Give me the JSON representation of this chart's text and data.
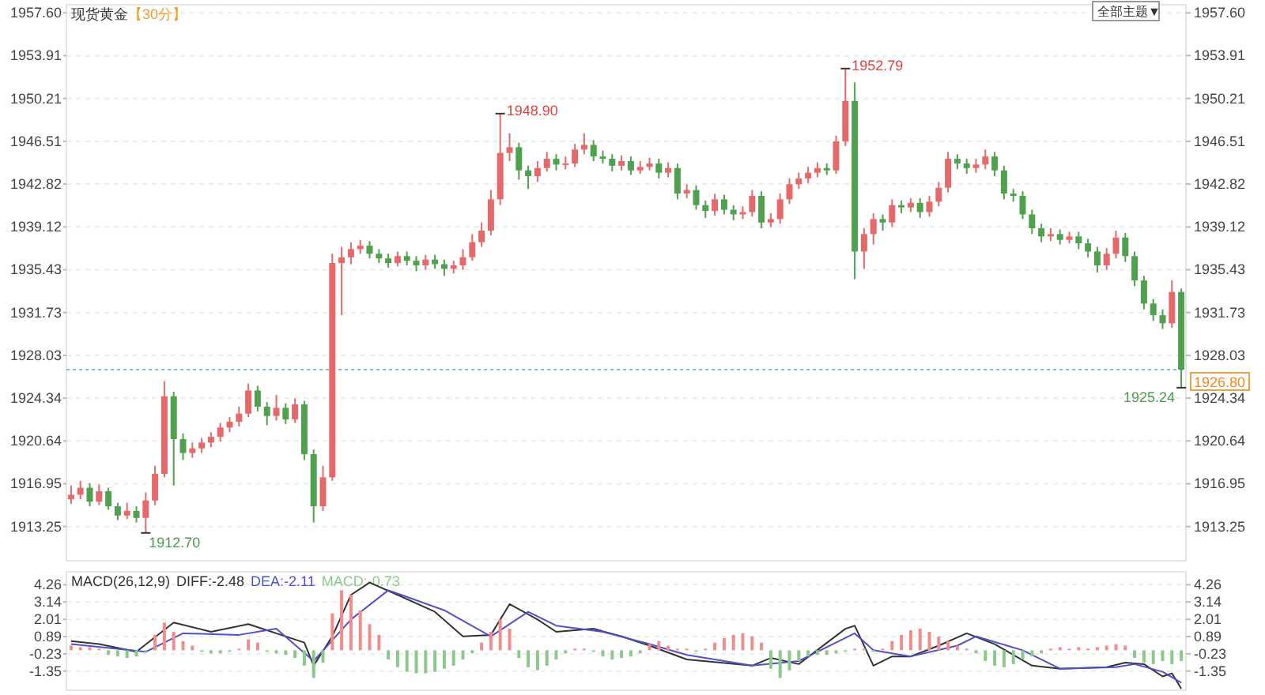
{
  "chart_data": [
    {
      "type": "candlestick",
      "title": "现货黄金",
      "subtitle": "【30分】",
      "tick_labels": "y",
      "grid": "y",
      "categories": [
        null,
        null,
        null,
        null,
        null,
        null,
        null,
        null,
        null,
        null,
        null,
        null,
        null,
        null,
        null,
        null,
        null,
        null,
        null,
        null,
        null,
        null,
        null,
        null,
        null,
        null,
        null,
        null,
        null,
        null,
        null,
        null,
        null,
        null,
        null,
        null,
        null,
        null,
        null,
        null,
        null,
        null,
        null,
        null,
        null,
        null,
        null,
        null,
        null,
        null,
        null,
        null,
        null,
        null,
        null,
        null,
        null,
        null,
        null,
        null,
        null,
        null,
        null,
        null,
        null,
        null,
        null,
        null,
        null,
        null,
        null,
        null,
        null,
        null,
        null,
        null,
        null,
        null,
        null,
        null,
        null,
        null,
        null,
        null,
        null,
        null,
        null,
        null,
        null,
        null,
        null,
        null,
        null,
        null,
        null,
        null,
        null,
        null,
        null,
        null,
        null,
        null,
        null,
        null,
        null,
        null,
        null,
        null,
        null,
        null,
        null,
        null,
        null,
        null,
        null,
        null,
        null,
        null,
        null,
        null
      ],
      "ohlc": [
        [
          1915.6,
          1916.8,
          1915.2,
          1916.0
        ],
        [
          1916.0,
          1917.2,
          1915.6,
          1916.6
        ],
        [
          1916.6,
          1917.0,
          1915.0,
          1915.4
        ],
        [
          1915.4,
          1916.9,
          1915.1,
          1916.3
        ],
        [
          1916.3,
          1916.6,
          1914.7,
          1915.0
        ],
        [
          1915.0,
          1915.3,
          1913.8,
          1914.2
        ],
        [
          1914.2,
          1915.3,
          1913.9,
          1914.6
        ],
        [
          1914.6,
          1915.0,
          1913.6,
          1914.0
        ],
        [
          1914.0,
          1916.2,
          1912.7,
          1915.5
        ],
        [
          1915.5,
          1918.5,
          1915.1,
          1917.8
        ],
        [
          1917.8,
          1925.8,
          1917.5,
          1924.5
        ],
        [
          1924.5,
          1924.9,
          1916.8,
          1920.8
        ],
        [
          1920.8,
          1921.3,
          1919.0,
          1919.6
        ],
        [
          1919.6,
          1920.5,
          1919.2,
          1920.0
        ],
        [
          1920.0,
          1920.9,
          1919.6,
          1920.5
        ],
        [
          1920.5,
          1921.4,
          1920.1,
          1921.0
        ],
        [
          1921.0,
          1922.2,
          1920.6,
          1921.8
        ],
        [
          1921.8,
          1922.7,
          1921.4,
          1922.3
        ],
        [
          1922.3,
          1923.6,
          1921.9,
          1923.0
        ],
        [
          1923.0,
          1925.6,
          1922.7,
          1925.0
        ],
        [
          1925.0,
          1925.4,
          1923.2,
          1923.6
        ],
        [
          1923.6,
          1924.0,
          1922.0,
          1922.8
        ],
        [
          1922.8,
          1924.6,
          1922.4,
          1923.5
        ],
        [
          1923.5,
          1923.9,
          1922.1,
          1922.5
        ],
        [
          1922.5,
          1924.3,
          1922.2,
          1923.8
        ],
        [
          1923.8,
          1924.1,
          1919.0,
          1919.5
        ],
        [
          1919.5,
          1919.9,
          1913.6,
          1915.0
        ],
        [
          1915.0,
          1918.5,
          1914.6,
          1917.5
        ],
        [
          1917.5,
          1936.8,
          1917.2,
          1936.0
        ],
        [
          1936.0,
          1937.4,
          1931.5,
          1936.5
        ],
        [
          1936.5,
          1937.8,
          1935.9,
          1937.2
        ],
        [
          1937.2,
          1938.0,
          1936.8,
          1937.5
        ],
        [
          1937.5,
          1937.9,
          1936.4,
          1936.8
        ],
        [
          1936.8,
          1937.2,
          1936.0,
          1936.4
        ],
        [
          1936.4,
          1936.8,
          1935.6,
          1936.0
        ],
        [
          1936.0,
          1937.0,
          1935.7,
          1936.6
        ],
        [
          1936.6,
          1937.0,
          1935.8,
          1936.2
        ],
        [
          1936.2,
          1936.6,
          1935.3,
          1935.8
        ],
        [
          1935.8,
          1936.7,
          1935.4,
          1936.3
        ],
        [
          1936.3,
          1936.7,
          1935.5,
          1935.9
        ],
        [
          1935.9,
          1936.3,
          1934.9,
          1935.5
        ],
        [
          1935.5,
          1936.2,
          1935.1,
          1935.8
        ],
        [
          1935.8,
          1937.2,
          1935.4,
          1936.5
        ],
        [
          1936.5,
          1938.5,
          1936.2,
          1937.8
        ],
        [
          1937.8,
          1939.5,
          1937.4,
          1938.8
        ],
        [
          1938.8,
          1942.3,
          1938.4,
          1941.5
        ],
        [
          1941.5,
          1948.9,
          1941.0,
          1945.5
        ],
        [
          1945.5,
          1947.2,
          1944.8,
          1946.0
        ],
        [
          1946.0,
          1946.4,
          1943.2,
          1944.0
        ],
        [
          1944.0,
          1944.4,
          1942.4,
          1943.5
        ],
        [
          1943.5,
          1944.8,
          1943.0,
          1944.2
        ],
        [
          1944.2,
          1945.6,
          1943.9,
          1945.0
        ],
        [
          1945.0,
          1945.4,
          1944.0,
          1944.5
        ],
        [
          1944.5,
          1945.2,
          1944.1,
          1944.6
        ],
        [
          1944.6,
          1946.3,
          1944.3,
          1945.8
        ],
        [
          1945.8,
          1947.2,
          1945.4,
          1946.2
        ],
        [
          1946.2,
          1946.6,
          1944.8,
          1945.2
        ],
        [
          1945.2,
          1945.7,
          1944.6,
          1945.0
        ],
        [
          1945.0,
          1945.4,
          1943.9,
          1944.4
        ],
        [
          1944.4,
          1945.3,
          1944.0,
          1944.8
        ],
        [
          1944.8,
          1945.2,
          1943.6,
          1944.0
        ],
        [
          1944.0,
          1944.8,
          1943.7,
          1944.3
        ],
        [
          1944.3,
          1945.1,
          1944.0,
          1944.6
        ],
        [
          1944.6,
          1945.0,
          1943.3,
          1943.8
        ],
        [
          1943.8,
          1944.7,
          1943.4,
          1944.2
        ],
        [
          1944.2,
          1944.6,
          1941.5,
          1942.0
        ],
        [
          1942.0,
          1942.8,
          1941.6,
          1942.3
        ],
        [
          1942.3,
          1942.7,
          1940.6,
          1941.0
        ],
        [
          1941.0,
          1941.4,
          1939.9,
          1940.5
        ],
        [
          1940.5,
          1942.0,
          1940.1,
          1941.5
        ],
        [
          1941.5,
          1941.9,
          1940.2,
          1940.6
        ],
        [
          1940.6,
          1941.0,
          1939.7,
          1940.2
        ],
        [
          1940.2,
          1940.9,
          1939.8,
          1940.4
        ],
        [
          1940.4,
          1942.3,
          1940.0,
          1941.8
        ],
        [
          1941.8,
          1942.2,
          1939.0,
          1939.5
        ],
        [
          1939.5,
          1940.3,
          1939.1,
          1939.8
        ],
        [
          1939.8,
          1942.0,
          1939.4,
          1941.5
        ],
        [
          1941.5,
          1943.3,
          1941.1,
          1942.8
        ],
        [
          1942.8,
          1943.8,
          1942.4,
          1943.3
        ],
        [
          1943.3,
          1944.3,
          1942.9,
          1943.8
        ],
        [
          1943.8,
          1944.7,
          1943.4,
          1944.2
        ],
        [
          1944.2,
          1944.6,
          1943.6,
          1944.0
        ],
        [
          1944.0,
          1947.0,
          1943.7,
          1946.5
        ],
        [
          1946.5,
          1952.79,
          1946.1,
          1950.0
        ],
        [
          1950.0,
          1951.6,
          1934.6,
          1937.0
        ],
        [
          1937.0,
          1939.0,
          1935.5,
          1938.5
        ],
        [
          1938.5,
          1940.3,
          1937.6,
          1939.8
        ],
        [
          1939.8,
          1940.2,
          1938.8,
          1939.5
        ],
        [
          1939.5,
          1941.5,
          1939.1,
          1941.0
        ],
        [
          1941.0,
          1941.4,
          1940.3,
          1940.8
        ],
        [
          1940.8,
          1941.6,
          1940.4,
          1941.2
        ],
        [
          1941.2,
          1941.6,
          1939.9,
          1940.4
        ],
        [
          1940.4,
          1941.8,
          1940.0,
          1941.3
        ],
        [
          1941.3,
          1943.0,
          1940.9,
          1942.5
        ],
        [
          1942.5,
          1945.6,
          1942.1,
          1945.0
        ],
        [
          1945.0,
          1945.4,
          1944.1,
          1944.6
        ],
        [
          1944.6,
          1945.0,
          1943.7,
          1944.2
        ],
        [
          1944.2,
          1945.0,
          1943.8,
          1944.5
        ],
        [
          1944.5,
          1945.8,
          1944.1,
          1945.2
        ],
        [
          1945.2,
          1945.6,
          1943.5,
          1944.0
        ],
        [
          1944.0,
          1944.4,
          1941.5,
          1942.0
        ],
        [
          1942.0,
          1942.4,
          1941.3,
          1941.8
        ],
        [
          1941.8,
          1942.2,
          1939.8,
          1940.2
        ],
        [
          1940.2,
          1940.6,
          1938.5,
          1939.0
        ],
        [
          1939.0,
          1939.4,
          1937.8,
          1938.3
        ],
        [
          1938.3,
          1939.0,
          1937.9,
          1938.5
        ],
        [
          1938.5,
          1938.9,
          1937.6,
          1938.0
        ],
        [
          1938.0,
          1938.7,
          1937.7,
          1938.3
        ],
        [
          1938.3,
          1938.7,
          1937.2,
          1937.7
        ],
        [
          1937.7,
          1938.1,
          1936.5,
          1937.0
        ],
        [
          1937.0,
          1937.4,
          1935.2,
          1935.8
        ],
        [
          1935.8,
          1937.3,
          1935.4,
          1936.8
        ],
        [
          1936.8,
          1938.8,
          1936.4,
          1938.2
        ],
        [
          1938.2,
          1938.6,
          1936.1,
          1936.6
        ],
        [
          1936.6,
          1937.0,
          1934.0,
          1934.5
        ],
        [
          1934.5,
          1934.9,
          1932.0,
          1932.5
        ],
        [
          1932.5,
          1932.9,
          1931.0,
          1931.5
        ],
        [
          1931.5,
          1932.0,
          1930.3,
          1930.8
        ],
        [
          1930.8,
          1934.5,
          1930.4,
          1933.5
        ],
        [
          1933.5,
          1933.8,
          1925.24,
          1926.8
        ]
      ],
      "ylim": [
        1910.3,
        1958.3
      ],
      "yticks": [
        {
          "value": 1957.6,
          "label": "1957.60"
        },
        1953.91,
        1950.21,
        1946.51,
        1942.82,
        1939.12,
        1935.43,
        1931.73,
        1928.03,
        1924.34,
        1920.64,
        1916.95,
        1913.25
      ],
      "y2lim": [
        1910.3,
        1958.3
      ],
      "y2ticks": [
        {
          "value": 1957.6,
          "label": "1957.60"
        },
        1953.91,
        1950.21,
        1946.51,
        1942.82,
        1939.12,
        1935.43,
        1931.73,
        1928.03,
        1924.34,
        1920.64,
        1916.95,
        1913.25
      ],
      "ref_lines": [
        {
          "axis": "y",
          "value": 1926.8,
          "label": "1926.80",
          "color": "#7ab8f5",
          "line_style": "dotted"
        }
      ],
      "annotations": [
        "1948.90",
        "1952.79",
        "1912.70",
        "1925.24",
        "全部主题▼"
      ]
    },
    {
      "type": "bar",
      "title": "MACD(26,12,9)",
      "tick_labels": "y",
      "grid": "y",
      "categories": [
        null,
        null,
        null,
        null,
        null,
        null,
        null,
        null,
        null,
        null,
        null,
        null,
        null,
        null,
        null,
        null,
        null,
        null,
        null,
        null,
        null,
        null,
        null,
        null,
        null,
        null,
        null,
        null,
        null,
        null,
        null,
        null,
        null,
        null,
        null,
        null,
        null,
        null,
        null,
        null,
        null,
        null,
        null,
        null,
        null,
        null,
        null,
        null,
        null,
        null,
        null,
        null,
        null,
        null,
        null,
        null,
        null,
        null,
        null,
        null,
        null,
        null,
        null,
        null,
        null,
        null,
        null,
        null,
        null,
        null,
        null,
        null,
        null,
        null,
        null,
        null,
        null,
        null,
        null,
        null,
        null,
        null,
        null,
        null,
        null,
        null,
        null,
        null,
        null,
        null,
        null,
        null,
        null,
        null,
        null,
        null,
        null,
        null,
        null,
        null,
        null,
        null,
        null,
        null,
        null,
        null,
        null,
        null,
        null,
        null,
        null,
        null,
        null,
        null,
        null,
        null,
        null,
        null,
        null,
        null
      ],
      "series": [
        {
          "name": "DIFF:-2.48",
          "type": "line",
          "color": "#333333",
          "values": [
            0.6,
            null,
            null,
            0.4,
            null,
            null,
            null,
            -0.1,
            null,
            null,
            null,
            1.8,
            null,
            null,
            null,
            1.2,
            null,
            null,
            null,
            1.7,
            null,
            null,
            null,
            null,
            null,
            0.5,
            -1.0,
            null,
            0.9,
            null,
            3.6,
            null,
            4.4,
            null,
            null,
            3.6,
            null,
            null,
            null,
            2.5,
            null,
            null,
            0.9,
            null,
            null,
            1.0,
            null,
            3.0,
            null,
            null,
            2.0,
            null,
            1.2,
            null,
            null,
            null,
            1.4,
            null,
            null,
            0.9,
            null,
            null,
            0.3,
            null,
            null,
            null,
            -0.6,
            null,
            null,
            null,
            null,
            null,
            null,
            -1.0,
            null,
            -0.5,
            null,
            null,
            -0.9,
            null,
            null,
            null,
            null,
            1.4,
            1.6,
            null,
            -1.0,
            null,
            -0.4,
            null,
            -0.4,
            null,
            null,
            0.3,
            null,
            null,
            1.1,
            null,
            null,
            0.4,
            null,
            null,
            null,
            -1.0,
            null,
            null,
            -1.2,
            null,
            null,
            null,
            null,
            -1.1,
            null,
            -0.8,
            null,
            -0.9,
            null,
            -1.7,
            -1.5,
            -2.5
          ]
        },
        {
          "name": "DEA:-2.11",
          "type": "line",
          "color": "#5050c8",
          "values": [
            0.4,
            null,
            null,
            null,
            null,
            null,
            null,
            null,
            -0.1,
            null,
            null,
            null,
            1.1,
            null,
            null,
            null,
            null,
            null,
            1.0,
            null,
            null,
            null,
            1.4,
            null,
            null,
            null,
            -0.7,
            null,
            null,
            null,
            2.0,
            null,
            null,
            null,
            3.9,
            null,
            null,
            null,
            null,
            null,
            2.6,
            null,
            null,
            null,
            null,
            0.9,
            null,
            null,
            null,
            2.5,
            null,
            null,
            1.6,
            null,
            null,
            null,
            null,
            1.2,
            null,
            null,
            null,
            null,
            0.4,
            null,
            null,
            null,
            -0.3,
            null,
            null,
            null,
            null,
            null,
            null,
            -1.0,
            null,
            null,
            null,
            null,
            -0.7,
            null,
            null,
            null,
            null,
            null,
            1.1,
            null,
            0.0,
            null,
            null,
            null,
            -0.4,
            null,
            null,
            null,
            null,
            0.3,
            null,
            0.9,
            null,
            null,
            null,
            null,
            0.0,
            null,
            null,
            null,
            -1.2,
            null,
            null,
            null,
            null,
            null,
            -1.1,
            null,
            -0.9,
            null,
            null,
            -1.4,
            null,
            -2.1
          ]
        },
        {
          "name": "MACD:-0.73",
          "type": "bar",
          "values": [
            0.3,
            0.2,
            0.2,
            0.1,
            -0.3,
            -0.4,
            -0.5,
            -0.4,
            -0.1,
            1.0,
            1.8,
            1.2,
            0.6,
            0.3,
            -0.1,
            -0.2,
            -0.2,
            -0.1,
            0.1,
            0.7,
            0.5,
            -0.1,
            -0.2,
            -0.3,
            -0.5,
            -1.0,
            -1.8,
            -0.8,
            2.4,
            3.9,
            3.6,
            2.6,
            1.7,
            1.0,
            -0.6,
            -1.1,
            -1.4,
            -1.5,
            -1.5,
            -1.4,
            -1.2,
            -1.0,
            -0.6,
            -0.2,
            0.5,
            1.2,
            2.0,
            1.4,
            -0.5,
            -1.1,
            -1.3,
            -1.0,
            -0.6,
            -0.2,
            0.1,
            0.1,
            -0.1,
            -0.4,
            -0.6,
            -0.5,
            -0.4,
            -0.2,
            0.4,
            0.6,
            0.3,
            0.1,
            0.1,
            -0.1,
            0.1,
            0.5,
            0.8,
            1.0,
            1.1,
            0.9,
            0.5,
            -1.2,
            -1.8,
            -1.3,
            -0.7,
            -0.4,
            -0.3,
            -0.3,
            -0.2,
            -0.1,
            0.1,
            0.1,
            -0.1,
            0.1,
            0.6,
            1.0,
            1.3,
            1.4,
            1.2,
            0.9,
            0.6,
            0.3,
            0.1,
            -0.2,
            -0.7,
            -1.0,
            -1.1,
            -0.9,
            -0.6,
            -0.4,
            -0.2,
            0.1,
            0.2,
            0.1,
            0.2,
            0.1,
            0.2,
            0.3,
            0.4,
            0.3,
            -0.5,
            -0.8,
            -0.9,
            -0.7,
            -0.9,
            -0.7
          ],
          "colors": [
            "#f08c8c",
            "#f08c8c",
            "#f08c8c",
            "#f08c8c",
            "#8cc88c",
            "#8cc88c",
            "#8cc88c",
            "#8cc88c",
            "#8cc88c",
            "#f08c8c",
            "#f08c8c",
            "#f08c8c",
            "#f08c8c",
            "#f08c8c",
            "#8cc88c",
            "#8cc88c",
            "#8cc88c",
            "#8cc88c",
            "#f08c8c",
            "#f08c8c",
            "#f08c8c",
            "#8cc88c",
            "#8cc88c",
            "#8cc88c",
            "#8cc88c",
            "#8cc88c",
            "#8cc88c",
            "#8cc88c",
            "#f08c8c",
            "#f08c8c",
            "#f08c8c",
            "#f08c8c",
            "#f08c8c",
            "#f08c8c",
            "#8cc88c",
            "#8cc88c",
            "#8cc88c",
            "#8cc88c",
            "#8cc88c",
            "#8cc88c",
            "#8cc88c",
            "#8cc88c",
            "#8cc88c",
            "#8cc88c",
            "#f08c8c",
            "#f08c8c",
            "#f08c8c",
            "#f08c8c",
            "#8cc88c",
            "#8cc88c",
            "#8cc88c",
            "#8cc88c",
            "#8cc88c",
            "#8cc88c",
            "#f08c8c",
            "#f08c8c",
            "#8cc88c",
            "#8cc88c",
            "#8cc88c",
            "#8cc88c",
            "#8cc88c",
            "#8cc88c",
            "#f08c8c",
            "#f08c8c",
            "#f08c8c",
            "#f08c8c",
            "#f08c8c",
            "#8cc88c",
            "#f08c8c",
            "#f08c8c",
            "#f08c8c",
            "#f08c8c",
            "#f08c8c",
            "#f08c8c",
            "#f08c8c",
            "#8cc88c",
            "#8cc88c",
            "#8cc88c",
            "#8cc88c",
            "#8cc88c",
            "#8cc88c",
            "#8cc88c",
            "#8cc88c",
            "#8cc88c",
            "#f08c8c",
            "#f08c8c",
            "#8cc88c",
            "#f08c8c",
            "#f08c8c",
            "#f08c8c",
            "#f08c8c",
            "#f08c8c",
            "#f08c8c",
            "#f08c8c",
            "#f08c8c",
            "#f08c8c",
            "#f08c8c",
            "#8cc88c",
            "#8cc88c",
            "#8cc88c",
            "#8cc88c",
            "#8cc88c",
            "#8cc88c",
            "#8cc88c",
            "#8cc88c",
            "#f08c8c",
            "#f08c8c",
            "#f08c8c",
            "#f08c8c",
            "#f08c8c",
            "#f08c8c",
            "#f08c8c",
            "#f08c8c",
            "#f08c8c",
            "#8cc88c",
            "#8cc88c",
            "#8cc88c",
            "#8cc88c",
            "#8cc88c",
            "#8cc88c"
          ]
        }
      ],
      "ylim": [
        -2.6,
        5.1
      ],
      "yticks": [
        4.26,
        3.14,
        2.01,
        0.89,
        -0.23,
        -1.35
      ],
      "y2lim": [
        -2.6,
        5.1
      ],
      "y2ticks": [
        4.26,
        3.14,
        2.01,
        0.89,
        -0.23,
        -1.35
      ]
    }
  ]
}
